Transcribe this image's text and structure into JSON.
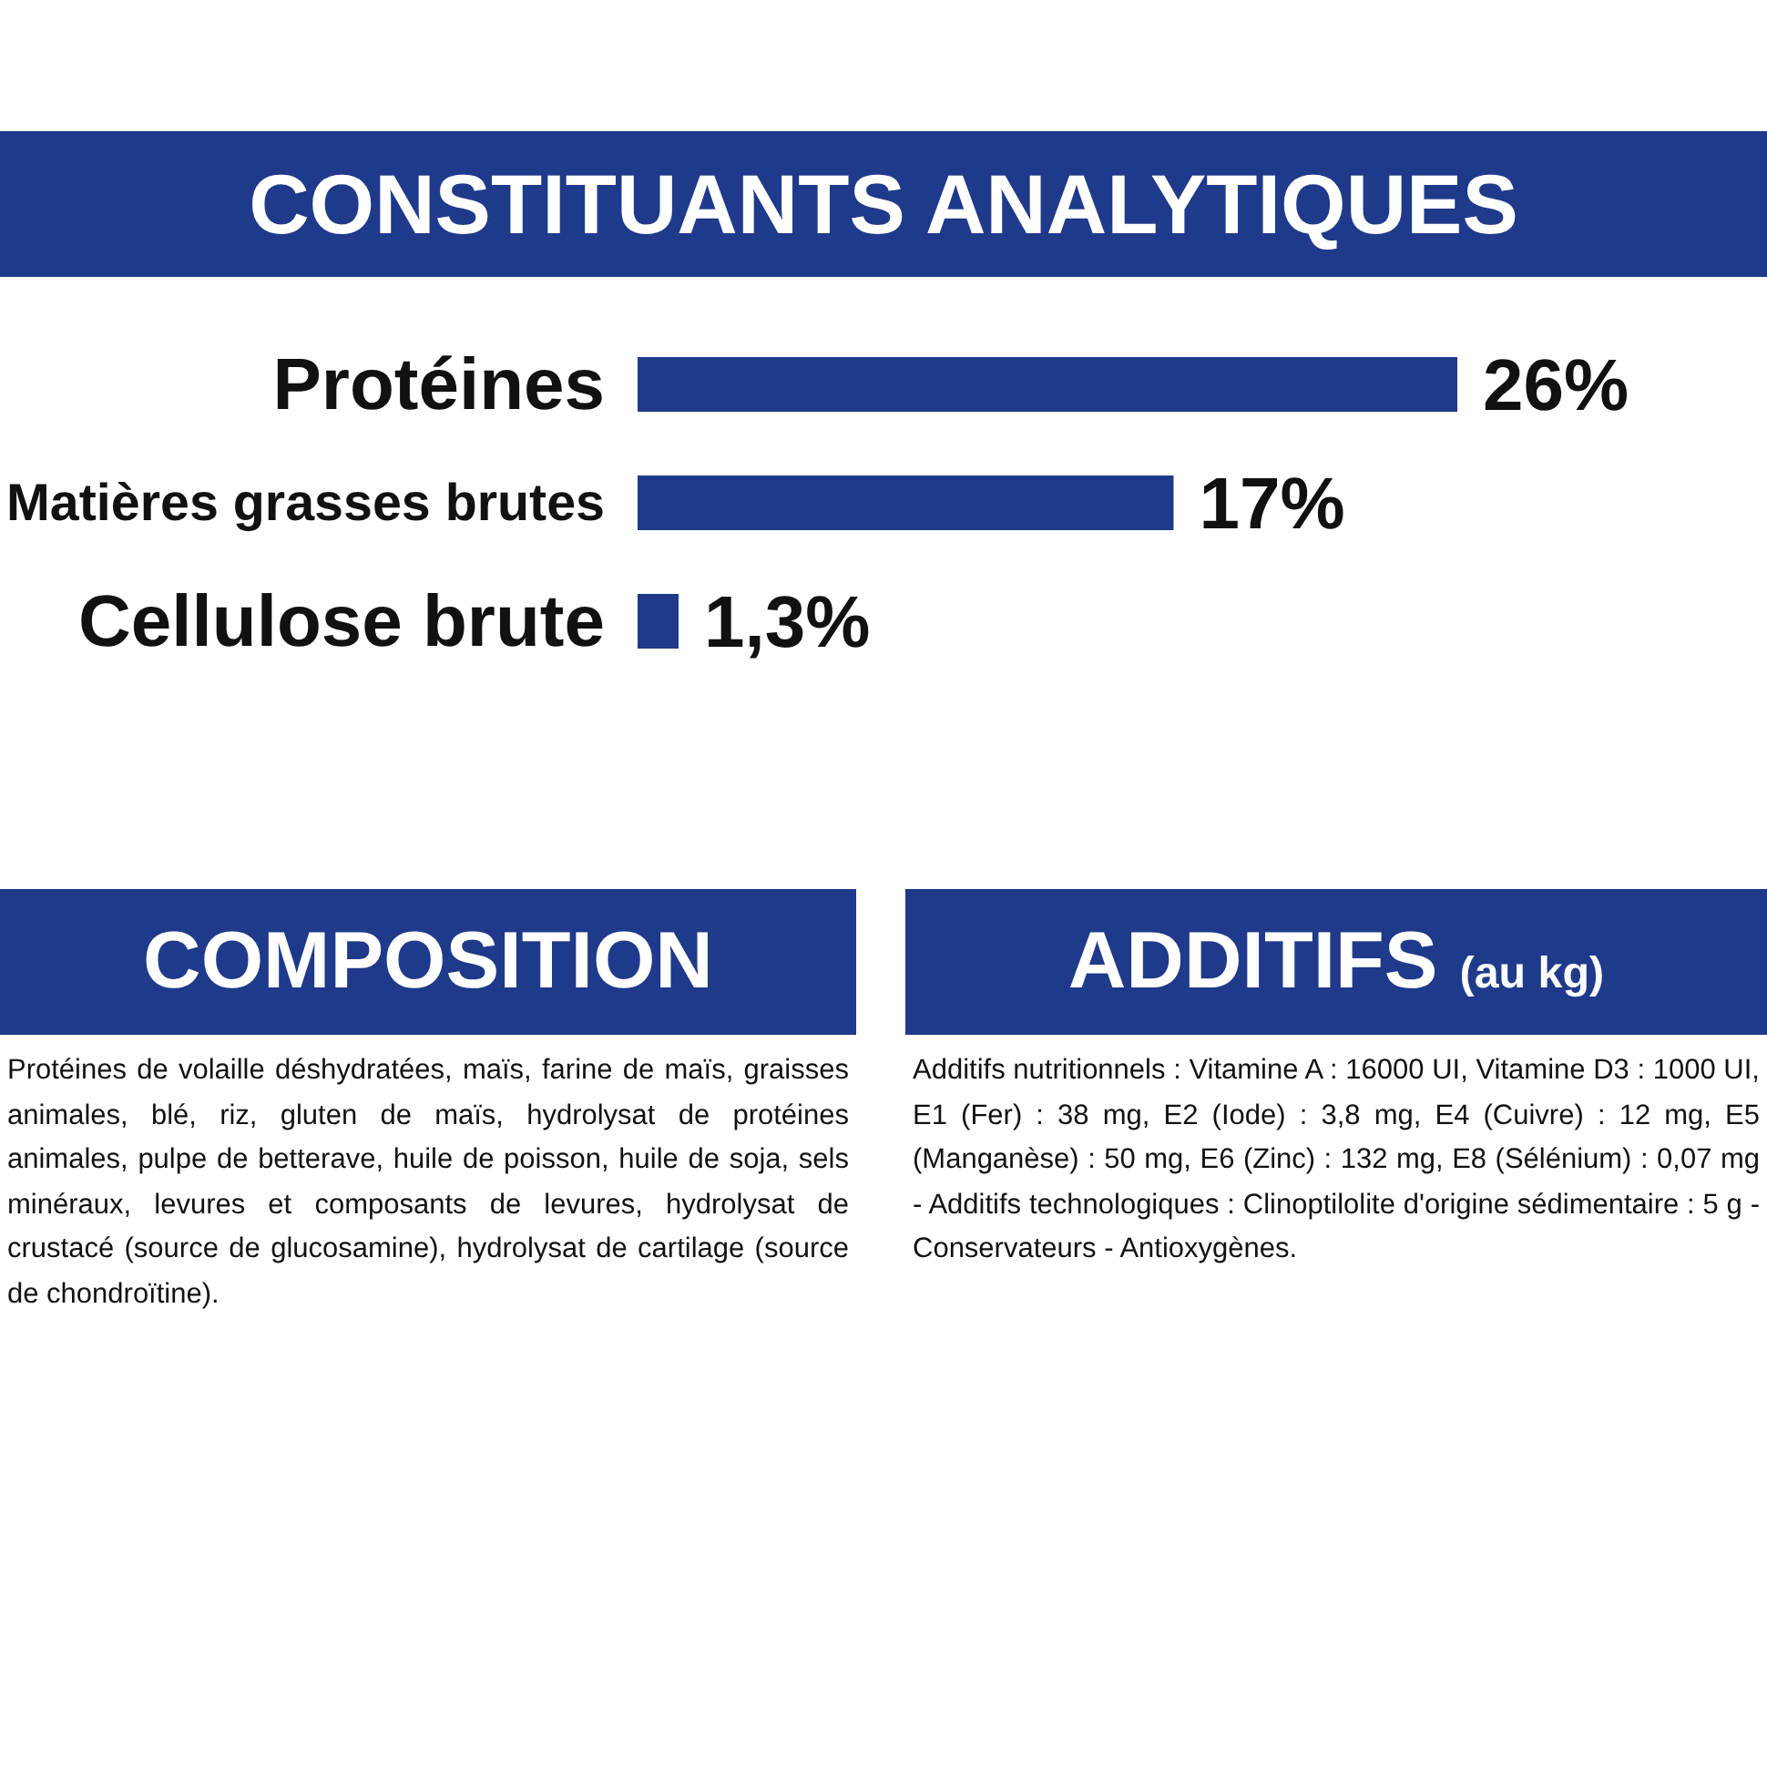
{
  "chart_data": [
    {
      "type": "bar",
      "orientation": "horizontal",
      "title": "CONSTITUANTS ANALYTIQUES",
      "categories": [
        "Protéines",
        "Matières grasses brutes",
        "Cellulose brute"
      ],
      "values": [
        26,
        17,
        1.3
      ],
      "value_labels": [
        "26%",
        "17%",
        "1,3%"
      ],
      "color": "#1f3a8a"
    },
    {
      "type": "other",
      "title": "COMPOSITION",
      "annotations": [
        "Protéines de volaille déshydratées, maïs, farine de maïs, graisses animales, blé, riz, gluten de maïs, hydrolysat de protéines animales, pulpe de betterave, huile de poisson, huile de soja, sels minéraux, levures et composants de levures, hydrolysat de crustacé (source de glucosamine), hydrolysat de cartilage (source de chondroïtine)."
      ]
    },
    {
      "type": "other",
      "title": "ADDITIFS",
      "subtitle": "(au kg)",
      "annotations": [
        "Additifs nutritionnels : Vitamine A : 16000 UI, Vitamine D3 : 1000 UI, E1 (Fer) : 38 mg, E2 (Iode) : 3,8 mg, E4 (Cuivre) : 12 mg, E5 (Manganèse) : 50 mg, E6 (Zinc) : 132 mg, E8 (Sélénium) : 0,07 mg - Additifs technologiques : Clinoptilolite d'origine sédimentaire : 5 g - Conservateurs - Antioxygènes."
      ]
    }
  ]
}
